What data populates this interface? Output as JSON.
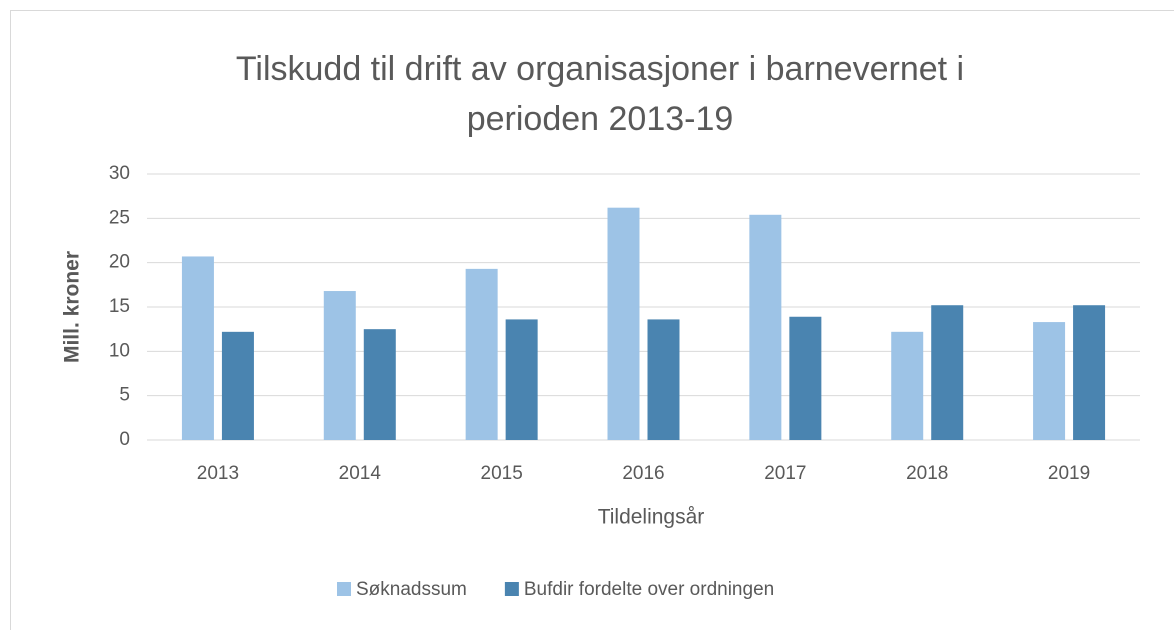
{
  "chart_data": {
    "type": "bar",
    "title": "Tilskudd til drift av organisasjoner i barnevernet i perioden 2013-19",
    "x_label": "Tildelingsår",
    "y_label": "Mill. kroner",
    "categories": [
      "2013",
      "2014",
      "2015",
      "2016",
      "2017",
      "2018",
      "2019"
    ],
    "series": [
      {
        "name": "Søknadssum",
        "color": "#9dc3e6",
        "values": [
          20.7,
          16.8,
          19.3,
          26.2,
          25.4,
          12.2,
          13.3
        ]
      },
      {
        "name": "Bufdir fordelte over ordningen",
        "color": "#4a84b0",
        "values": [
          12.2,
          12.5,
          13.6,
          13.6,
          13.9,
          15.2,
          15.2
        ]
      }
    ],
    "ylim": [
      0,
      30
    ],
    "yticks": [
      0,
      5,
      10,
      15,
      20,
      25,
      30
    ],
    "grid": true,
    "legend": "bottom"
  }
}
